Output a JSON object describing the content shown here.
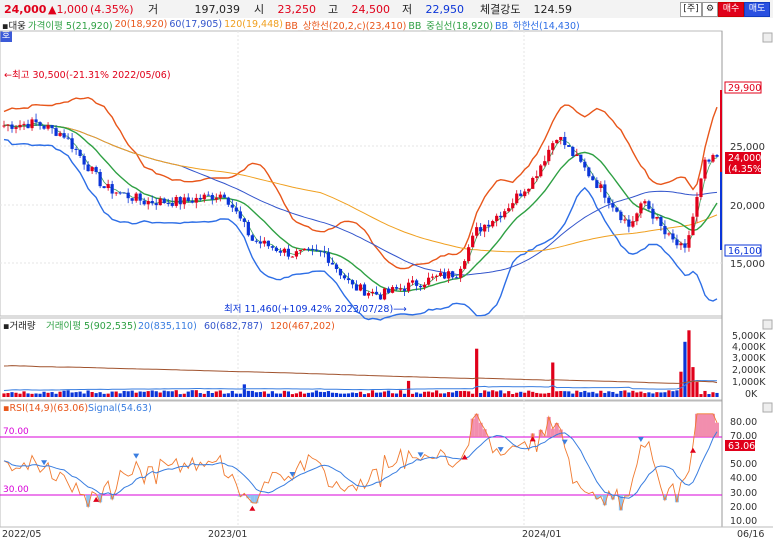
{
  "topbar": {
    "price": "24,000",
    "change": "▲1,000",
    "change_pct": "(4.35%)",
    "volume_label": "거",
    "volume": "197,039",
    "open_label": "시",
    "open": "23,250",
    "high_label": "고",
    "high": "24,500",
    "low_label": "저",
    "low": "22,950",
    "strength_label": "체결강도",
    "strength": "124.59",
    "btn_stock": "[주]",
    "btn_gear": "⚙",
    "btn_buy": "매수",
    "btn_sell": "매도"
  },
  "legend": {
    "main": "▪대웅",
    "ma5": "가격이평 5(21,920)",
    "ma20": "20(18,920)",
    "ma60": "60(17,905)",
    "ma120": "120(19,448)",
    "bb_up": "BB_상한선(20,2,c)(23,410)",
    "bb_mid": "BB_중심선(18,920)",
    "bb_low": "BB_하한선(14,430)",
    "ho": "호"
  },
  "price_panel": {
    "high_note": "←최고 30,500(-21.31% 2022/05/06)",
    "low_note": "최저 11,460(+109.42% 2023/07/28)⟶",
    "axis": [
      "25,000",
      "20,000",
      "15,000"
    ],
    "tag_high": "29,900",
    "tag_cur": "24,000",
    "tag_cur_pct": "(4.35%)",
    "tag_low": "16,100"
  },
  "volume_panel": {
    "title": "▪거래량",
    "ma5": "거래이평 5(902,535)",
    "ma20": "20(835,110)",
    "ma60": "60(682,787)",
    "ma120": "120(467,202)",
    "axis": [
      "5,000K",
      "4,000K",
      "3,000K",
      "2,000K",
      "1,000K",
      "0K"
    ]
  },
  "rsi_panel": {
    "title": "▪RSI(14,9)(63.06)",
    "signal": "Signal(54.63)",
    "axis": [
      "80.00",
      "70.00",
      "60.00",
      "50.00",
      "40.00",
      "30.00",
      "20.00",
      "10.00"
    ],
    "line70": "70.00",
    "line30": "30.00",
    "tag_rsi": "63.06"
  },
  "xaxis": {
    "labels": [
      "2022/05",
      "2023/01",
      "2024/01",
      "06/16"
    ]
  },
  "colors": {
    "up": "#e0001a",
    "down": "#0b35d8",
    "ma5": "#2ea043",
    "ma20": "#e8561a",
    "ma60": "#3355cc",
    "ma120": "#f0a020",
    "bb": "#2d6ee6",
    "rsi": "#f07a30",
    "signal": "#3a7ee0",
    "band": "#d800d8"
  }
}
